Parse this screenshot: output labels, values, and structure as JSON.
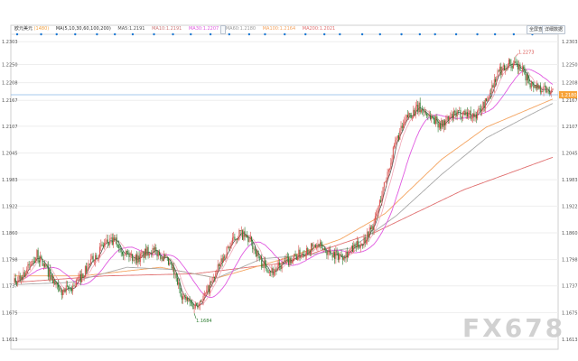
{
  "legend": {
    "symbol": "欧元美元",
    "period": "(1480)",
    "ma_header": "MA(5,10,30,60,100,200)",
    "ma5": "MA5:1.2191",
    "ma10": "MA10:1.2191",
    "ma30": "MA30:1.2207",
    "ma60": "MA60:1.2180",
    "ma100": "MA100:1.2164",
    "ma200": "MA200:1.2021"
  },
  "buttons": {
    "left": "全屏查看",
    "right": "详细数据"
  },
  "price_labels": {
    "high": "1.2273",
    "low": "1.1684",
    "current": "1.2180"
  },
  "watermark": "FX678",
  "colors": {
    "bull": "#d9534f",
    "bear": "#2e7d32",
    "ma5": "#555555",
    "ma10": "#f2a8b8",
    "ma30": "#e05ae0",
    "ma60": "#a9a9a9",
    "ma100": "#f4a460",
    "ma200": "#e07070",
    "grid": "#eeeeee",
    "current_line": "#8ab6e8",
    "dot": "#1976d2"
  },
  "chart_data": {
    "type": "candlestick",
    "ylim": [
      1.159,
      1.2316
    ],
    "y_ticks": [
      "1.2303",
      "1.2250",
      "1.2208",
      "1.2167",
      "1.2107",
      "1.2045",
      "1.1983",
      "1.1922",
      "1.1860",
      "1.1798",
      "1.1737",
      "1.1675",
      "1.1613"
    ],
    "price_anchors": [
      [
        0,
        1.1745
      ],
      [
        10,
        1.177
      ],
      [
        20,
        1.1808
      ],
      [
        30,
        1.177
      ],
      [
        40,
        1.172
      ],
      [
        50,
        1.173
      ],
      [
        60,
        1.176
      ],
      [
        70,
        1.18
      ],
      [
        80,
        1.1835
      ],
      [
        90,
        1.184
      ],
      [
        100,
        1.181
      ],
      [
        110,
        1.18
      ],
      [
        120,
        1.182
      ],
      [
        130,
        1.181
      ],
      [
        140,
        1.1778
      ],
      [
        150,
        1.171
      ],
      [
        160,
        1.169
      ],
      [
        170,
        1.1716
      ],
      [
        180,
        1.177
      ],
      [
        190,
        1.1825
      ],
      [
        200,
        1.186
      ],
      [
        210,
        1.184
      ],
      [
        220,
        1.179
      ],
      [
        230,
        1.177
      ],
      [
        240,
        1.179
      ],
      [
        250,
        1.1805
      ],
      [
        260,
        1.182
      ],
      [
        270,
        1.183
      ],
      [
        280,
        1.1815
      ],
      [
        290,
        1.1806
      ],
      [
        300,
        1.182
      ],
      [
        310,
        1.184
      ],
      [
        320,
        1.188
      ],
      [
        330,
        1.198
      ],
      [
        340,
        1.2075
      ],
      [
        350,
        1.213
      ],
      [
        360,
        1.215
      ],
      [
        370,
        1.213
      ],
      [
        380,
        1.211
      ],
      [
        390,
        1.213
      ],
      [
        400,
        1.214
      ],
      [
        410,
        1.213
      ],
      [
        420,
        1.2165
      ],
      [
        430,
        1.223
      ],
      [
        440,
        1.2255
      ],
      [
        450,
        1.224
      ],
      [
        460,
        1.2205
      ],
      [
        470,
        1.2195
      ],
      [
        479,
        1.2188
      ]
    ],
    "ma200_anchors": [
      [
        0,
        1.1745
      ],
      [
        80,
        1.176
      ],
      [
        160,
        1.1765
      ],
      [
        240,
        1.179
      ],
      [
        320,
        1.186
      ],
      [
        400,
        1.196
      ],
      [
        479,
        1.2035
      ]
    ],
    "ma100_anchors": [
      [
        0,
        1.176
      ],
      [
        60,
        1.176
      ],
      [
        130,
        1.178
      ],
      [
        180,
        1.1755
      ],
      [
        240,
        1.18
      ],
      [
        290,
        1.1845
      ],
      [
        330,
        1.1905
      ],
      [
        380,
        1.203
      ],
      [
        420,
        1.2105
      ],
      [
        479,
        1.217
      ]
    ],
    "ma60_anchors": [
      [
        0,
        1.174
      ],
      [
        50,
        1.1745
      ],
      [
        100,
        1.178
      ],
      [
        140,
        1.1775
      ],
      [
        180,
        1.1755
      ],
      [
        220,
        1.18
      ],
      [
        260,
        1.1808
      ],
      [
        300,
        1.1825
      ],
      [
        340,
        1.19
      ],
      [
        380,
        1.1995
      ],
      [
        420,
        1.208
      ],
      [
        460,
        1.2135
      ],
      [
        479,
        1.216
      ]
    ],
    "low_marker": "1.1684",
    "high_marker": "1.2273",
    "current_price": 1.218,
    "grid": true,
    "legend_position": "top-left",
    "dot_count": 28
  }
}
